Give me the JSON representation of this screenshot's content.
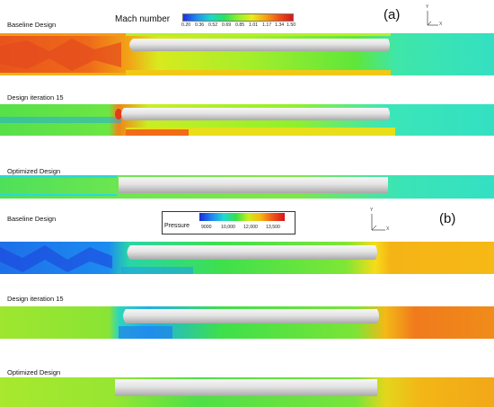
{
  "panel_a": {
    "tag": "(a)",
    "legend_title": "Mach number",
    "legend_ticks": [
      "0.20",
      "0.36",
      "0.52",
      "0.69",
      "0.85",
      "1.01",
      "1.17",
      "1.34",
      "1.50"
    ],
    "labels": [
      "Baseline Design",
      "Design iteration 15",
      "Optimized Design"
    ],
    "axis_y": "Y",
    "axis_x": "X"
  },
  "panel_b": {
    "tag": "(b)",
    "legend_title": "Pressure",
    "legend_ticks": [
      "9000",
      "10,000",
      "12,000",
      "13,500"
    ],
    "labels": [
      "Baseline Design",
      "Design iteration 15",
      "Optimized Design"
    ],
    "axis_y": "Y",
    "axis_x": "X"
  },
  "colors": {
    "mach_scale": [
      "#1d2fe0",
      "#1e8ff0",
      "#19d9c8",
      "#27e25e",
      "#8ff02a",
      "#e8ee18",
      "#f7a413",
      "#f24f17",
      "#d9151a"
    ],
    "pressure_scale": [
      "#1a2cd8",
      "#1e86f2",
      "#1fd9d0",
      "#33e04c",
      "#c9ee1a",
      "#f6b814",
      "#f2561a",
      "#d6161c"
    ],
    "body": "#d9d9d9"
  }
}
